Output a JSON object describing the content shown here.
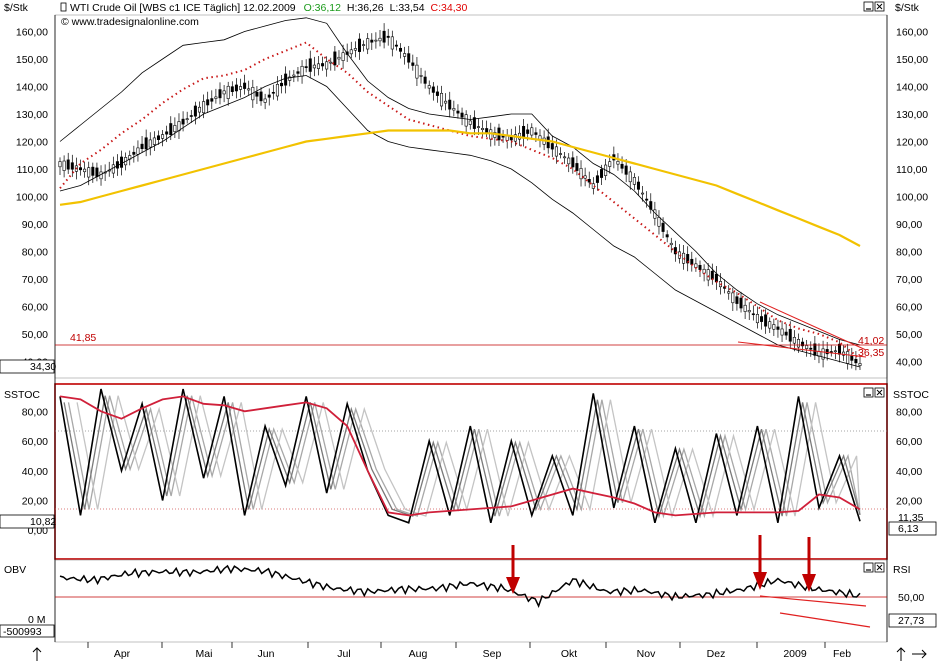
{
  "header": {
    "unit_left": "$/Stk",
    "unit_right": "$/Stk",
    "instrument": "WTI Crude Oil [WBS c1 ICE  Täglich] 12.02.2009",
    "open": "O:36,12",
    "high": "H:36,26",
    "low": "L:33,54",
    "close": "C:34,30",
    "source": "© www.tradesignalonline.com",
    "colors": {
      "open": "#1a9a1a",
      "close": "#e00000",
      "text": "#000000"
    }
  },
  "price_panel": {
    "yticks": [
      "160,00",
      "150,00",
      "140,00",
      "130,00",
      "120,00",
      "110,00",
      "100,00",
      "90,00",
      "80,00",
      "70,00",
      "60,00",
      "50,00",
      "40,00"
    ],
    "last_price_label": "34,30",
    "hline_label_left": "41,85",
    "hline_label_right": "41,02",
    "trend_label_right": "36,35"
  },
  "sstoc_panel": {
    "title_left": "SSTOC",
    "title_right": "SSTOC",
    "yticks": [
      "80,00",
      "60,00",
      "40,00",
      "20,00",
      "0,00"
    ],
    "left_value": "10,82",
    "right_value_top": "11,35",
    "right_value": "6,13"
  },
  "obv_panel": {
    "title_left": "OBV",
    "title_right": "RSI",
    "left_ticks": [
      "0 M",
      "-500993"
    ],
    "right_ticks": [
      "50,00"
    ],
    "right_value": "27,73"
  },
  "x_axis": {
    "months": [
      "Apr",
      "Mai",
      "Jun",
      "Jul",
      "Aug",
      "Sep",
      "Okt",
      "Nov",
      "Dez",
      "2009",
      "Feb"
    ]
  },
  "chart_data": [
    {
      "type": "line",
      "title": "WTI Crude Oil [WBS c1 ICE  Täglich] 12.02.2009",
      "ylabel": "$/Stk",
      "ylim": [
        34,
        166
      ],
      "x": [
        0,
        6,
        12,
        18,
        24,
        30,
        36,
        42,
        48,
        54,
        60,
        66,
        72,
        78,
        84,
        90,
        96,
        102,
        108,
        114,
        120,
        126,
        132,
        138,
        144,
        150,
        156,
        162,
        168,
        174,
        180,
        186,
        192,
        198,
        204,
        210,
        216,
        222,
        228,
        234
      ],
      "series": [
        {
          "values": [
            112,
            110,
            108,
            112,
            118,
            122,
            127,
            133,
            138,
            140,
            135,
            142,
            147,
            148,
            152,
            156,
            158,
            150,
            140,
            133,
            127,
            123,
            121,
            124,
            118,
            112,
            104,
            114,
            106,
            94,
            80,
            75,
            70,
            62,
            56,
            52,
            47,
            43,
            44,
            39
          ]
        },
        {
          "values": [
            103,
            112,
            117,
            123,
            128,
            134,
            139,
            143,
            144,
            146,
            150,
            153,
            156,
            150,
            145,
            138,
            133,
            128,
            126,
            124,
            122,
            121,
            120,
            117,
            114,
            110,
            104,
            98,
            92,
            86,
            80,
            74,
            69,
            65,
            60,
            55,
            52,
            50,
            47,
            41
          ]
        },
        {
          "values": [
            120,
            126,
            132,
            138,
            145,
            150,
            155,
            156,
            157,
            160,
            162,
            164,
            165,
            163,
            152,
            142,
            136,
            132,
            130,
            129,
            128,
            129,
            130,
            130,
            122,
            118,
            112,
            108,
            102,
            94,
            87,
            80,
            72,
            66,
            61,
            57,
            54,
            51,
            48,
            46
          ]
        },
        {
          "values": [
            102,
            104,
            108,
            112,
            116,
            120,
            125,
            130,
            133,
            136,
            140,
            143,
            144,
            140,
            132,
            124,
            120,
            118,
            117,
            116,
            115,
            113,
            110,
            105,
            99,
            94,
            88,
            82,
            78,
            72,
            66,
            62,
            58,
            54,
            50,
            46,
            44,
            42,
            40,
            38
          ]
        },
        {
          "values": [
            97,
            98,
            100,
            102,
            104,
            106,
            108,
            110,
            112,
            114,
            116,
            118,
            120,
            121,
            122,
            123,
            124,
            124,
            124,
            124,
            123,
            123,
            122,
            121,
            120,
            118,
            116,
            114,
            112,
            110,
            108,
            106,
            104,
            101,
            98,
            95,
            92,
            89,
            86,
            82
          ]
        }
      ]
    },
    {
      "type": "line",
      "title": "SSTOC",
      "ylim": [
        -18,
        97
      ],
      "x": [
        0,
        6,
        12,
        18,
        24,
        30,
        36,
        42,
        48,
        54,
        60,
        66,
        72,
        78,
        84,
        90,
        96,
        102,
        108,
        114,
        120,
        126,
        132,
        138,
        144,
        150,
        156,
        162,
        168,
        174,
        180,
        186,
        192,
        198,
        204,
        210,
        216,
        222,
        228,
        234
      ],
      "series": [
        {
          "values": [
            90,
            10,
            95,
            40,
            85,
            20,
            95,
            35,
            90,
            10,
            70,
            30,
            90,
            25,
            85,
            40,
            10,
            5,
            60,
            10,
            70,
            5,
            60,
            10,
            50,
            10,
            92,
            15,
            70,
            5,
            55,
            5,
            65,
            10,
            70,
            5,
            90,
            15,
            50,
            6
          ]
        },
        {
          "values": [
            90,
            88,
            80,
            75,
            82,
            88,
            90,
            85,
            84,
            80,
            82,
            84,
            86,
            82,
            70,
            40,
            12,
            10,
            12,
            13,
            14,
            15,
            16,
            20,
            24,
            28,
            25,
            22,
            18,
            12,
            10,
            11,
            12,
            12,
            12,
            12,
            13,
            24,
            22,
            14
          ]
        }
      ]
    },
    {
      "type": "line",
      "title": "OBV",
      "ylim": [
        -1,
        1
      ],
      "x": [
        0,
        10,
        20,
        30,
        40,
        50,
        60,
        70,
        80,
        90,
        100,
        110,
        120,
        130,
        140,
        150,
        160,
        170,
        180,
        190,
        200,
        210,
        220,
        230,
        234
      ],
      "series": [
        {
          "values": [
            0.62,
            0.55,
            0.75,
            0.8,
            0.78,
            0.9,
            0.82,
            0.55,
            0.3,
            0.2,
            0.28,
            0.3,
            0.45,
            0.3,
            -0.1,
            0.55,
            0.2,
            0.25,
            0.05,
            0.12,
            0.28,
            0.55,
            0.3,
            0.15,
            -0.06
          ]
        }
      ]
    }
  ]
}
